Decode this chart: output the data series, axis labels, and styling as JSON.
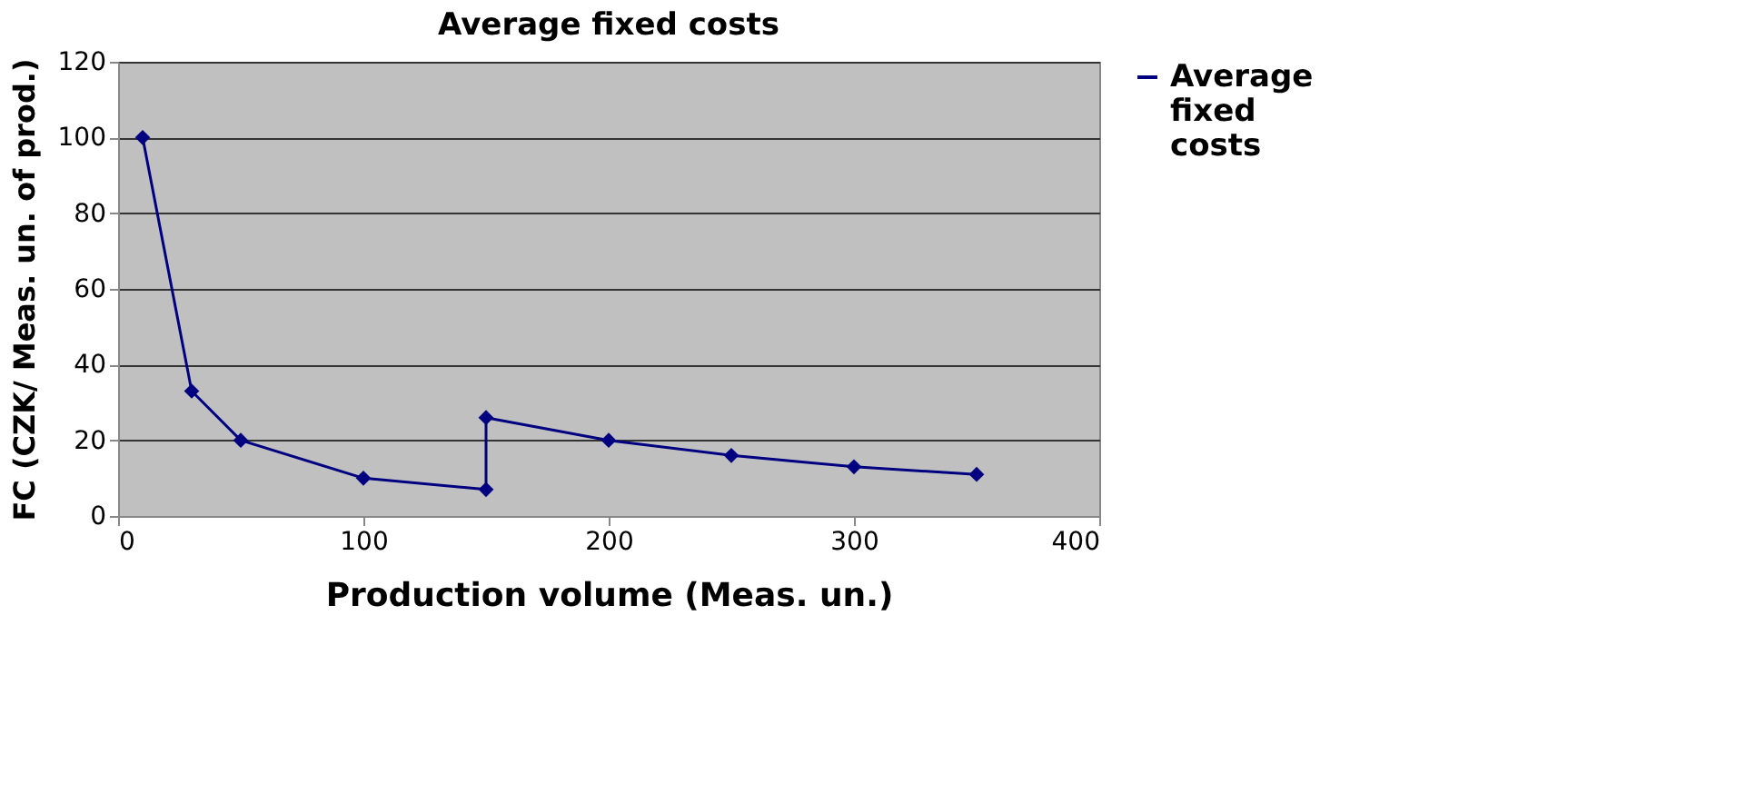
{
  "chart_data": {
    "type": "line",
    "title": "Average fixed costs",
    "xlabel": "Production volume (Meas. un.)",
    "ylabel": "FC (CZK/ Meas. un. of prod.)",
    "x": [
      10,
      30,
      50,
      100,
      150,
      150,
      200,
      250,
      300,
      350
    ],
    "series": [
      {
        "name": "Average fixed costs",
        "color": "#000080",
        "values": [
          100,
          33,
          20,
          10,
          7,
          26,
          20,
          16,
          13,
          11
        ]
      }
    ],
    "xlim": [
      0,
      400
    ],
    "xticks": [
      0,
      100,
      200,
      300,
      400
    ],
    "ylim": [
      0,
      120
    ],
    "yticks": [
      0,
      20,
      40,
      60,
      80,
      100,
      120
    ],
    "grid": "y",
    "legend": "right",
    "marker": "diamond",
    "line_style": "solid"
  }
}
